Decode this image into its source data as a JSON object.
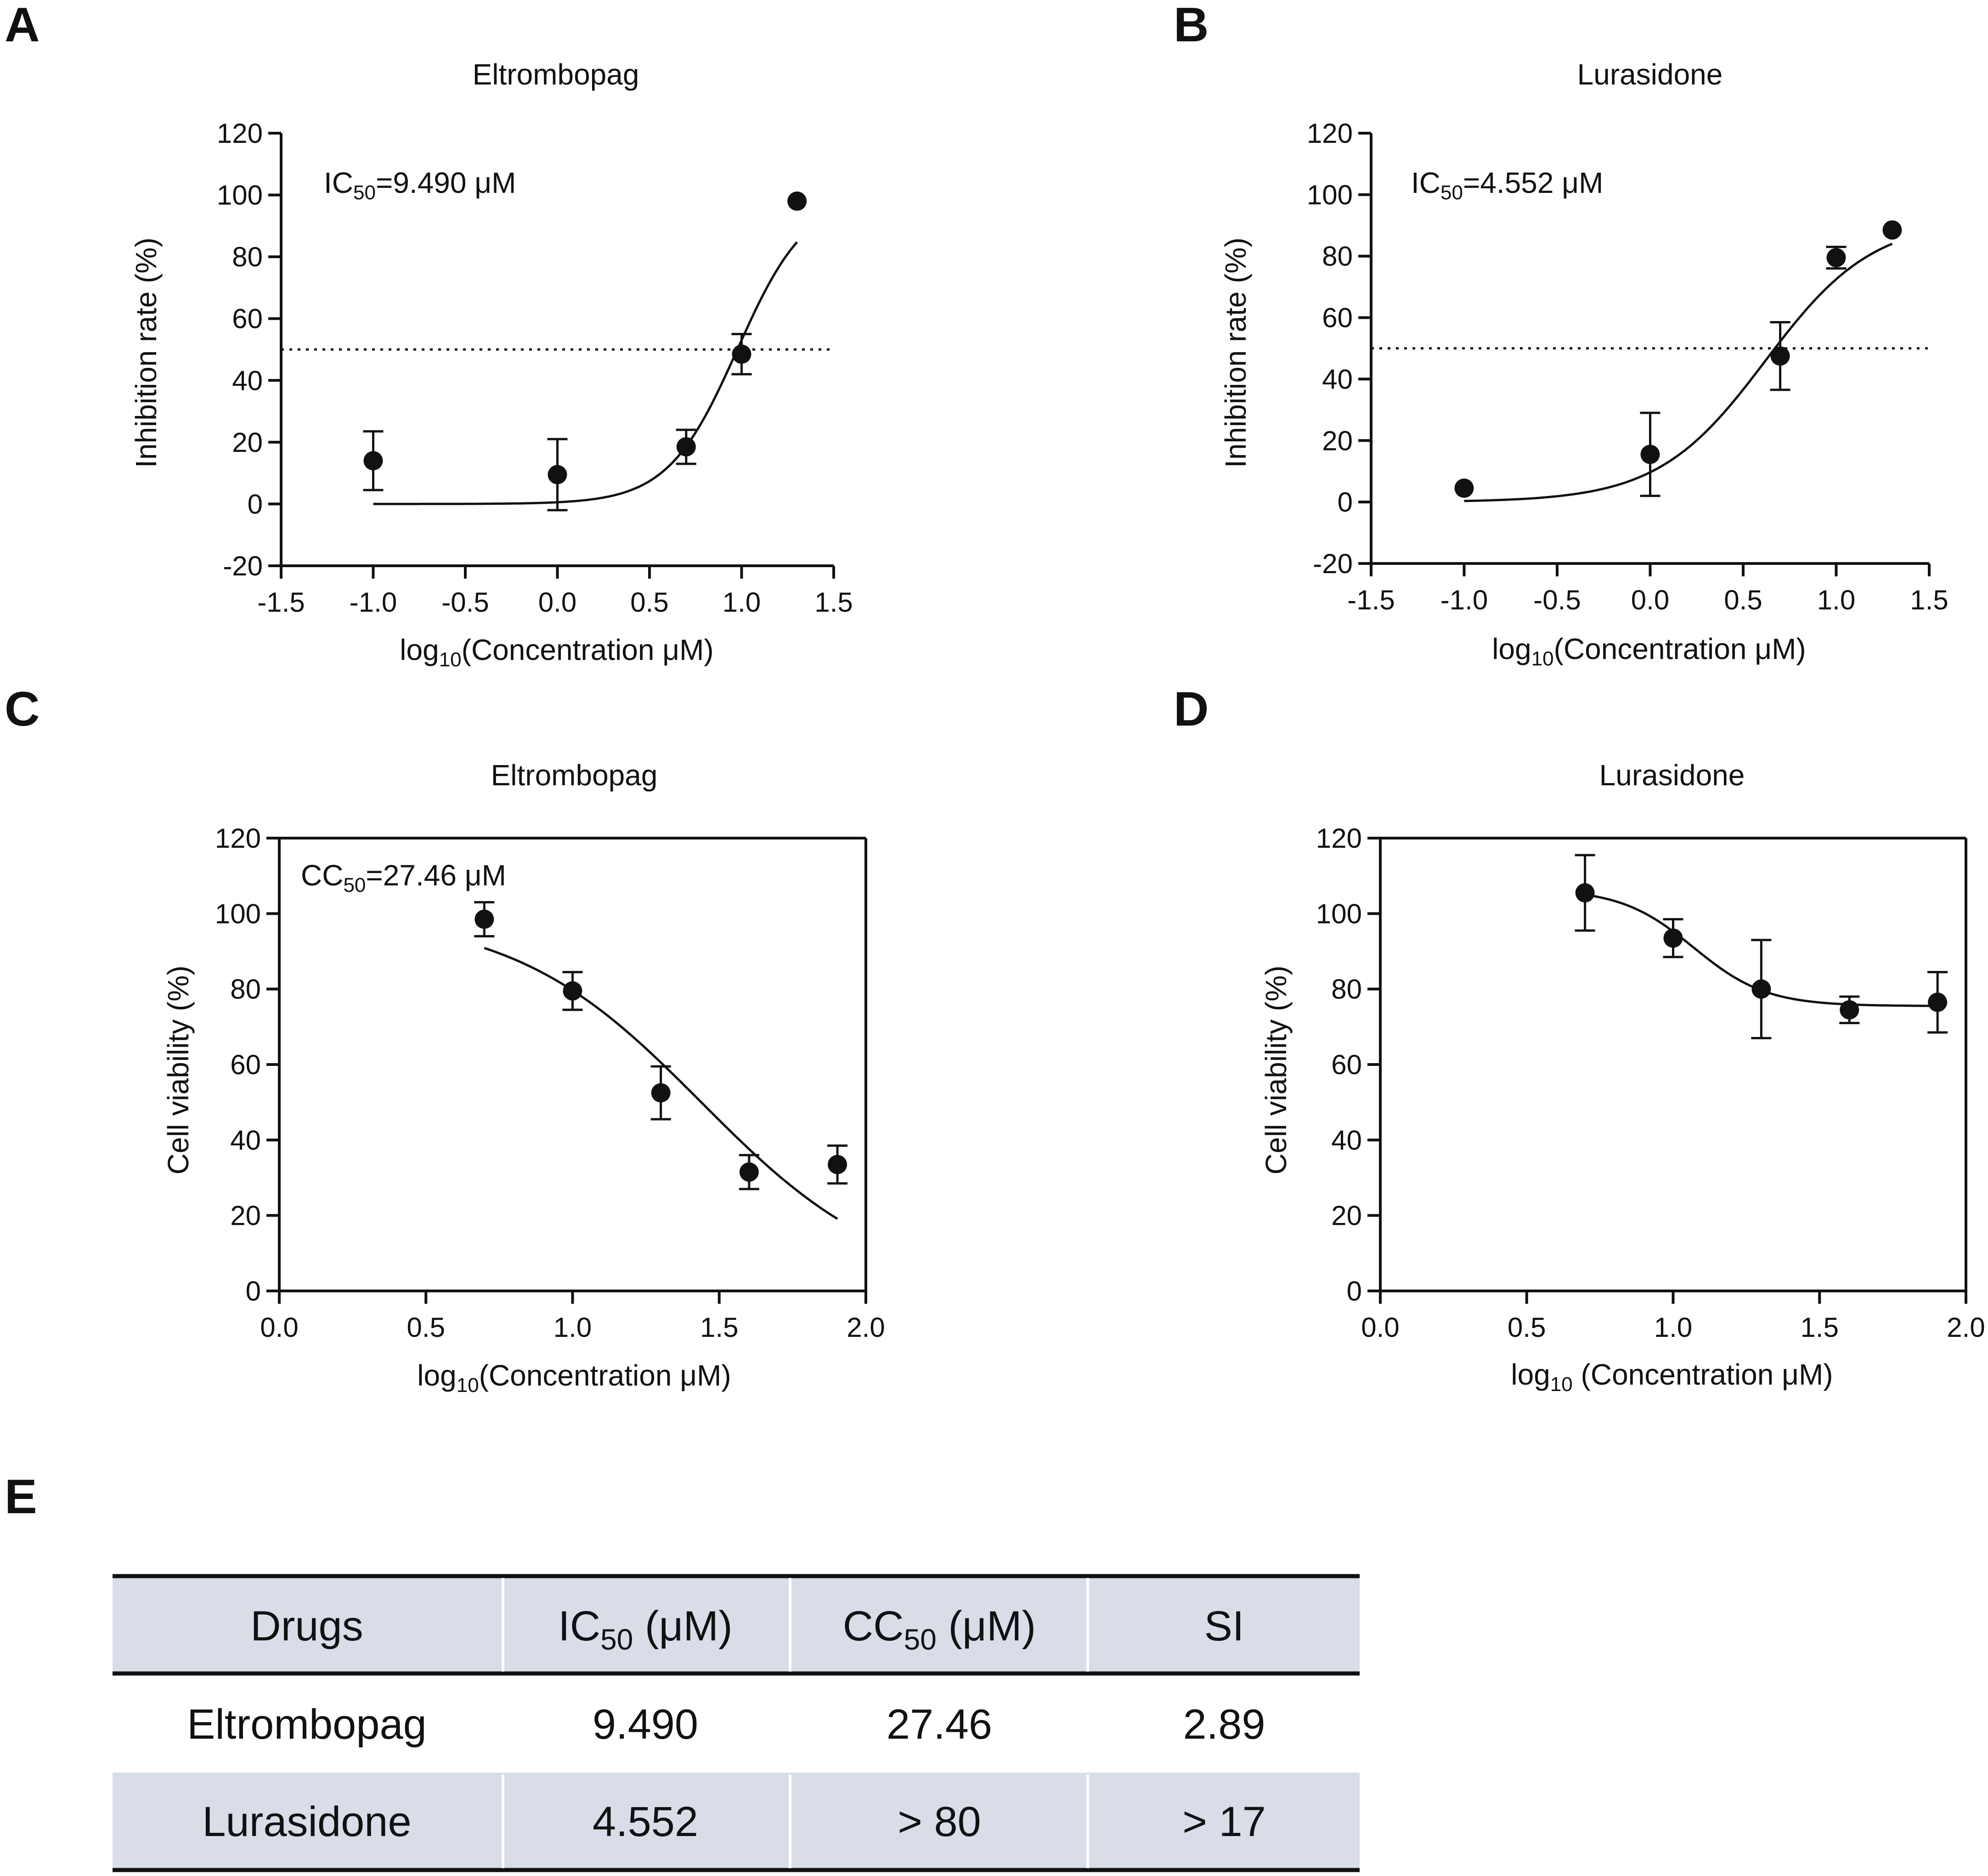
{
  "panels": [
    "A",
    "B",
    "C",
    "D",
    "E"
  ],
  "chart_data": [
    {
      "panel": "A",
      "type": "scatter",
      "fit": "sigmoid-increasing",
      "title": "Eltrombopag",
      "xlabel": {
        "main": "log",
        "sub": "10",
        "rest": "(Concentration μM)"
      },
      "ylabel": "Inhibition rate (%)",
      "annotation": {
        "main": "IC",
        "sub": "50",
        "rest": "=9.490 μM"
      },
      "xlim": [
        -1.5,
        1.5
      ],
      "ylim": [
        -20,
        120
      ],
      "xticks": [
        "-1.5",
        "-1.0",
        "-0.5",
        "0.0",
        "0.5",
        "1.0",
        "1.5"
      ],
      "yticks": [
        "-20",
        "0",
        "20",
        "40",
        "60",
        "80",
        "100",
        "120"
      ],
      "reference_line": 50,
      "x": [
        -1.0,
        0.0,
        0.699,
        1.0,
        1.301
      ],
      "y": [
        14,
        9.5,
        18.5,
        48.5,
        98
      ],
      "err": [
        9.5,
        11.5,
        5.5,
        6.5,
        0
      ],
      "fit_params": {
        "bottom": 0,
        "top": 100,
        "logx50": 0.977,
        "hill": 2.3,
        "x_range": [
          -1.0,
          1.301
        ]
      }
    },
    {
      "panel": "B",
      "type": "scatter",
      "fit": "sigmoid-increasing",
      "title": "Lurasidone",
      "xlabel": {
        "main": "log",
        "sub": "10",
        "rest": "(Concentration μM)"
      },
      "ylabel": "Inhibition rate (%)",
      "annotation": {
        "main": "IC",
        "sub": "50",
        "rest": "=4.552 μM"
      },
      "xlim": [
        -1.5,
        1.5
      ],
      "ylim": [
        -20,
        120
      ],
      "xticks": [
        "-1.5",
        "-1.0",
        "-0.5",
        "0.0",
        "0.5",
        "1.0",
        "1.5"
      ],
      "yticks": [
        "-20",
        "0",
        "20",
        "40",
        "60",
        "80",
        "100",
        "120"
      ],
      "reference_line": 50,
      "x": [
        -1.0,
        0.0,
        0.699,
        1.0,
        1.301
      ],
      "y": [
        4.5,
        15.5,
        47.5,
        79.5,
        88.5
      ],
      "err": [
        0,
        13.5,
        11,
        3.5,
        0
      ],
      "fit_params": {
        "bottom": 0,
        "top": 92,
        "logx50": 0.62,
        "hill": 1.5,
        "x_range": [
          -1.0,
          1.301
        ]
      }
    },
    {
      "panel": "C",
      "type": "scatter",
      "fit": "sigmoid-decreasing",
      "title": "Eltrombopag",
      "xlabel": {
        "main": "log",
        "sub": "10",
        "rest": "(Concentration μM)"
      },
      "ylabel": "Cell viability (%)",
      "annotation": {
        "main": "CC",
        "sub": "50",
        "rest": "=27.46 μM"
      },
      "xlim": [
        0.0,
        2.0
      ],
      "ylim": [
        0,
        120
      ],
      "xticks": [
        "0.0",
        "0.5",
        "1.0",
        "1.5",
        "2.0"
      ],
      "yticks": [
        "0",
        "20",
        "40",
        "60",
        "80",
        "100",
        "120"
      ],
      "x": [
        0.699,
        1.0,
        1.301,
        1.602,
        1.903
      ],
      "y": [
        98.5,
        79.5,
        52.5,
        31.5,
        33.5
      ],
      "err": [
        4.5,
        5,
        7,
        4.5,
        5
      ],
      "fit_params": {
        "top": 100,
        "bottom": 0,
        "logx50": 1.4387,
        "hill": 1.35,
        "x_range": [
          0.699,
          1.903
        ]
      }
    },
    {
      "panel": "D",
      "type": "scatter",
      "fit": "sigmoid-decreasing",
      "title": "Lurasidone",
      "xlabel": {
        "main": "log",
        "sub": "10",
        "rest": " (Concentration μM)"
      },
      "ylabel": "Cell viability (%)",
      "xlim": [
        0.0,
        2.0
      ],
      "ylim": [
        0,
        120
      ],
      "xticks": [
        "0.0",
        "0.5",
        "1.0",
        "1.5",
        "2.0"
      ],
      "yticks": [
        "0",
        "20",
        "40",
        "60",
        "80",
        "100",
        "120"
      ],
      "x": [
        0.699,
        1.0,
        1.301,
        1.602,
        1.903
      ],
      "y": [
        105.5,
        93.5,
        80,
        74.5,
        76.5
      ],
      "err": [
        10,
        5,
        13,
        3.5,
        8
      ],
      "fit_params": {
        "top": 106.5,
        "bottom": 75.5,
        "logx50": 1.07,
        "hill": 3.5,
        "x_range": [
          0.699,
          1.903
        ]
      }
    }
  ],
  "table": {
    "headers": [
      {
        "main": "Drugs"
      },
      {
        "main": "IC",
        "sub": "50",
        "rest": " (μM)"
      },
      {
        "main": "CC",
        "sub": "50",
        "rest": " (μM)"
      },
      {
        "main": "SI"
      }
    ],
    "rows": [
      [
        "Eltrombopag",
        "9.490",
        "27.46",
        "2.89"
      ],
      [
        "Lurasidone",
        "4.552",
        "> 80",
        "> 17"
      ]
    ]
  },
  "colors": {
    "ink": "#111111",
    "table_band": "#d8dde8",
    "background": "#ffffff"
  }
}
